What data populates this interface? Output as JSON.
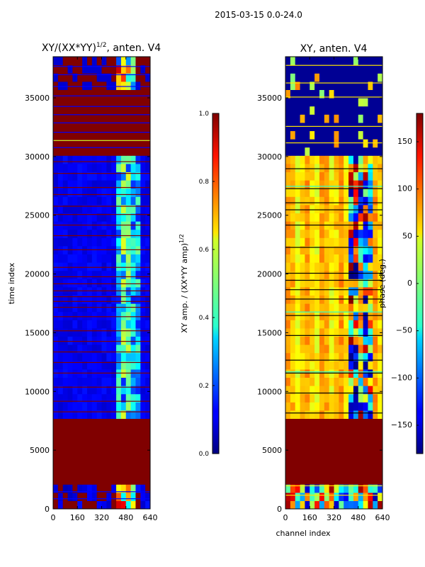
{
  "suptitle": "2015-03-15 0.0-24.0",
  "chart_data": [
    {
      "type": "heatmap",
      "title": "XY/(XX*YY)",
      "title_exponent": "1/2",
      "title_suffix": ", anten. V4",
      "xlabel": "",
      "ylabel": "time index",
      "xlim": [
        0,
        640
      ],
      "ylim": [
        0,
        38500
      ],
      "xticks": [
        0,
        160,
        320,
        480,
        640
      ],
      "yticks": [
        0,
        5000,
        10000,
        15000,
        20000,
        25000,
        30000,
        35000
      ],
      "colormap": "jet",
      "colorbar": {
        "label": "XY amp. / (XX*YY amp)",
        "label_exponent": "1/2",
        "range": [
          0.0,
          1.0
        ],
        "ticks": [
          0.0,
          0.2,
          0.4,
          0.6,
          0.8,
          1.0
        ],
        "tick_labels": [
          "0.0",
          "0.2",
          "0.4",
          "0.6",
          "0.8",
          "1.0"
        ]
      },
      "time_bands": [
        {
          "start": 0,
          "end": 2200,
          "value": "mixed (0.05-1.0)"
        },
        {
          "start": 2200,
          "end": 7800,
          "value": 1.0
        },
        {
          "start": 7800,
          "end": 30200,
          "value": "low (~0.1), rising to ~0.4 for channels 420-560"
        },
        {
          "start": 30200,
          "end": 35500,
          "value": "mostly 1.0 with low-valued rows"
        },
        {
          "start": 35500,
          "end": 38500,
          "value": "mixed (0.05-1.0)"
        }
      ]
    },
    {
      "type": "heatmap",
      "title": "XY, anten. V4",
      "xlabel": "channel index",
      "ylabel": "",
      "xlim": [
        0,
        640
      ],
      "ylim": [
        0,
        38500
      ],
      "xticks": [
        0,
        160,
        320,
        480,
        640
      ],
      "yticks": [
        0,
        5000,
        10000,
        15000,
        20000,
        25000,
        30000,
        35000
      ],
      "colormap": "jet",
      "colorbar": {
        "label": "phase (deg.)",
        "range": [
          -180,
          180
        ],
        "ticks": [
          -150,
          -100,
          -50,
          0,
          50,
          100,
          150
        ],
        "tick_labels": [
          "−150",
          "−100",
          "−50",
          "0",
          "50",
          "100",
          "150"
        ]
      },
      "time_bands": [
        {
          "start": 0,
          "end": 2200,
          "value": "mixed"
        },
        {
          "start": 2200,
          "end": 7800,
          "value": 180
        },
        {
          "start": 7800,
          "end": 30200,
          "value": "~50 to 120 deg, noisy (-180 to 180) for channels 420-560"
        },
        {
          "start": 30200,
          "end": 38500,
          "value": "mostly -180 with scattered rows near 0-60"
        }
      ]
    }
  ]
}
